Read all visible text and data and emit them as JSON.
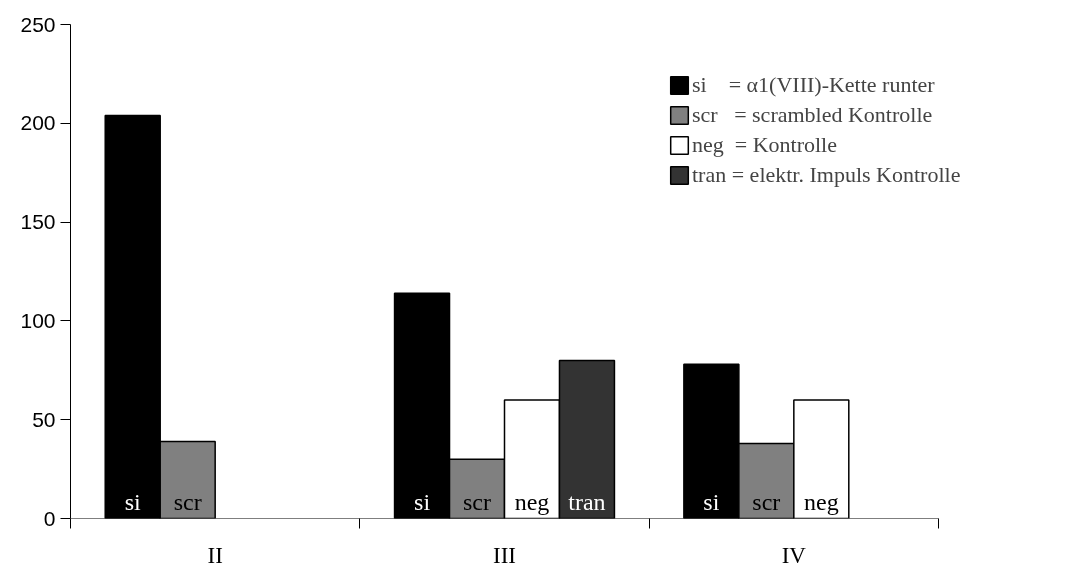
{
  "chart_data": {
    "type": "bar",
    "categories": [
      "II",
      "III",
      "IV"
    ],
    "ylim": [
      0,
      250
    ],
    "yticks": [
      0,
      50,
      100,
      150,
      200,
      250
    ],
    "grid": false,
    "legend": "top right",
    "series": [
      {
        "name": "si    = α1(VIII)-Kette runter",
        "color": "#000000",
        "values": [
          204,
          114,
          78
        ],
        "value_labels": [
          "si",
          "si",
          "si"
        ]
      },
      {
        "name": "scr   = scrambled Kontrolle",
        "color": "#808080",
        "values": [
          39,
          30,
          38
        ],
        "value_labels": [
          "scr",
          "scr",
          "scr"
        ]
      },
      {
        "name": "neg  = Kontrolle",
        "color": "#ffffff",
        "values": [
          null,
          60,
          60
        ],
        "value_labels": [
          null,
          "neg",
          "neg"
        ]
      },
      {
        "name": "tran = elektr. Impuls Kontrolle",
        "color": "#333333",
        "values": [
          null,
          80,
          null
        ],
        "value_labels": [
          null,
          "tran",
          null
        ]
      }
    ]
  }
}
